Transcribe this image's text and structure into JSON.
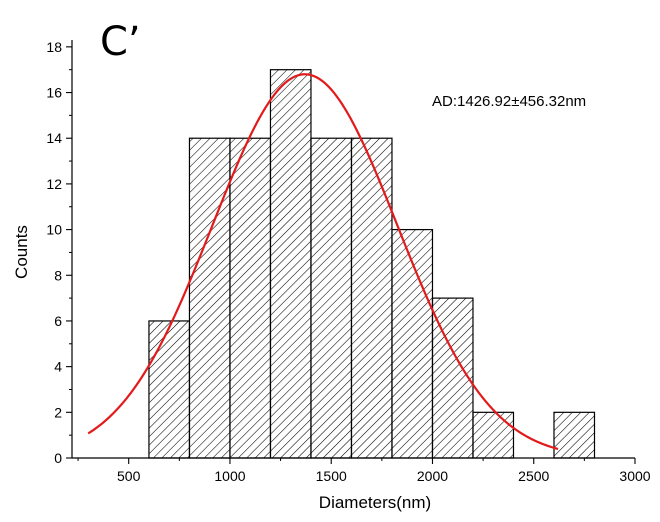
{
  "chart_data": {
    "type": "bar",
    "panel_label": "C’",
    "annotation": "AD:1426.92±456.32nm",
    "xlabel": "Diameters(nm)",
    "ylabel": "Counts",
    "xlim": [
      220,
      3000
    ],
    "ylim": [
      0,
      18.3
    ],
    "x_ticks": [
      "500",
      "1000",
      "1500",
      "2000",
      "2500",
      "3000"
    ],
    "y_ticks": [
      "0",
      "2",
      "4",
      "6",
      "8",
      "10",
      "12",
      "14",
      "16",
      "18"
    ],
    "bins": [
      {
        "x0": 600,
        "x1": 800,
        "count": 6
      },
      {
        "x0": 800,
        "x1": 1000,
        "count": 14
      },
      {
        "x0": 1000,
        "x1": 1200,
        "count": 14
      },
      {
        "x0": 1200,
        "x1": 1400,
        "count": 17
      },
      {
        "x0": 1400,
        "x1": 1600,
        "count": 14
      },
      {
        "x0": 1600,
        "x1": 1800,
        "count": 14
      },
      {
        "x0": 1800,
        "x1": 2000,
        "count": 10
      },
      {
        "x0": 2000,
        "x1": 2200,
        "count": 7
      },
      {
        "x0": 2200,
        "x1": 2400,
        "count": 2
      },
      {
        "x0": 2600,
        "x1": 2800,
        "count": 2
      }
    ],
    "fit_curve": {
      "type": "gaussian",
      "mean": 1370,
      "sd": 456.32,
      "peak": 16.8,
      "x_range": [
        300,
        2620
      ],
      "color": "#e31a1c"
    },
    "bar_fill": "hatched",
    "bar_stroke": "#000000",
    "grid": false
  }
}
